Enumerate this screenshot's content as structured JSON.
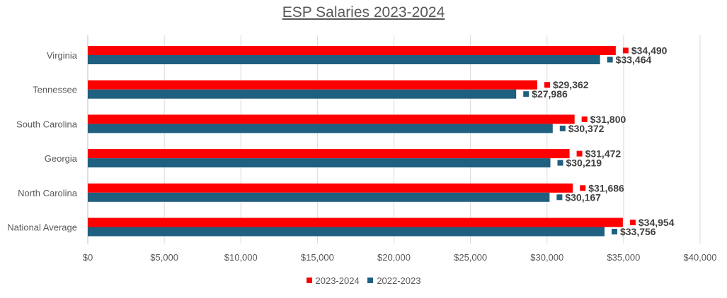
{
  "chart_data": {
    "type": "bar",
    "orientation": "horizontal",
    "title": "ESP Salaries 2023-2024",
    "categories": [
      "Virginia",
      "Tennessee",
      "South Carolina",
      "Georgia",
      "North Carolina",
      "National Average"
    ],
    "series": [
      {
        "name": "2023-2024",
        "color": "#ff0000",
        "values": [
          34490,
          29362,
          31800,
          31472,
          31686,
          34954
        ],
        "labels": [
          "$34,490",
          "$29,362",
          "$31,800",
          "$31,472",
          "$31,686",
          "$34,954"
        ]
      },
      {
        "name": "2022-2023",
        "color": "#1f5f7f",
        "values": [
          33464,
          27986,
          30372,
          30219,
          30167,
          33756
        ],
        "labels": [
          "$33,464",
          "$27,986",
          "$30,372",
          "$30,219",
          "$30,167",
          "$33,756"
        ]
      }
    ],
    "xlim": [
      0,
      40000
    ],
    "xticks": [
      0,
      5000,
      10000,
      15000,
      20000,
      25000,
      30000,
      35000,
      40000
    ],
    "xtick_labels": [
      "$0",
      "$5,000",
      "$10,000",
      "$15,000",
      "$20,000",
      "$25,000",
      "$30,000",
      "$35,000",
      "$40,000"
    ],
    "grid": true,
    "legend_position": "bottom"
  }
}
